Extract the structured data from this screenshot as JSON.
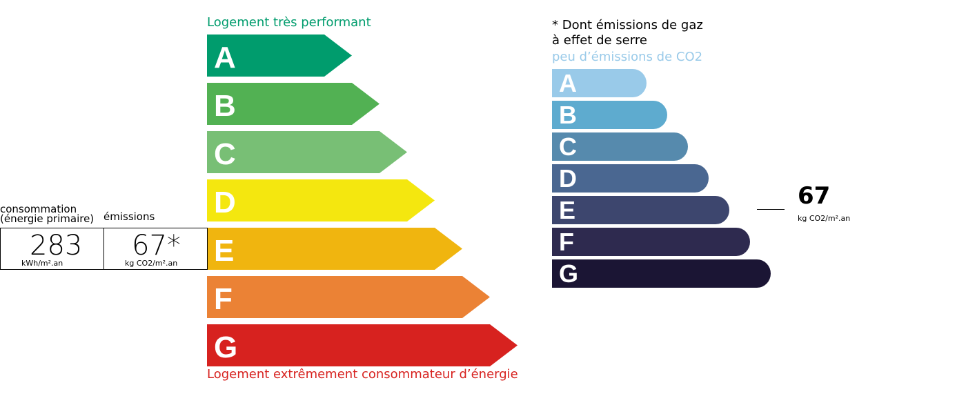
{
  "energy": {
    "top_label": "Logement très performant",
    "bottom_label": "Logement extrêmement consommateur d’énergie",
    "top_color": "#009c6d",
    "bottom_color": "#d7221f",
    "classes": [
      {
        "letter": "A",
        "color": "#009c6d"
      },
      {
        "letter": "B",
        "color": "#52b153"
      },
      {
        "letter": "C",
        "color": "#78bf75"
      },
      {
        "letter": "D",
        "color": "#f4e70f"
      },
      {
        "letter": "E",
        "color": "#f0b50f"
      },
      {
        "letter": "F",
        "color": "#eb8235"
      },
      {
        "letter": "G",
        "color": "#d7221f"
      }
    ]
  },
  "summary": {
    "consumption_label_1": "consommation",
    "consumption_label_2": "(énergie primaire)",
    "emissions_label": "émissions",
    "consumption_value": "283",
    "consumption_unit": "kWh/m².an",
    "emissions_value": "67*",
    "emissions_unit": "kg CO2/m².an",
    "current_energy_class": "E"
  },
  "ges": {
    "note_1": "* Dont émissions de gaz",
    "note_2": "à effet de serre",
    "top_label": "peu d’émissions de CO2",
    "top_color": "#99cae9",
    "value": "67",
    "unit": "kg CO2/m².an",
    "current_class": "E",
    "classes": [
      {
        "letter": "A",
        "color": "#99cae9"
      },
      {
        "letter": "B",
        "color": "#5eabcf"
      },
      {
        "letter": "C",
        "color": "#568aad"
      },
      {
        "letter": "D",
        "color": "#4a6791"
      },
      {
        "letter": "E",
        "color": "#3d466e"
      },
      {
        "letter": "F",
        "color": "#2e2a4f"
      },
      {
        "letter": "G",
        "color": "#1b1534"
      }
    ]
  }
}
